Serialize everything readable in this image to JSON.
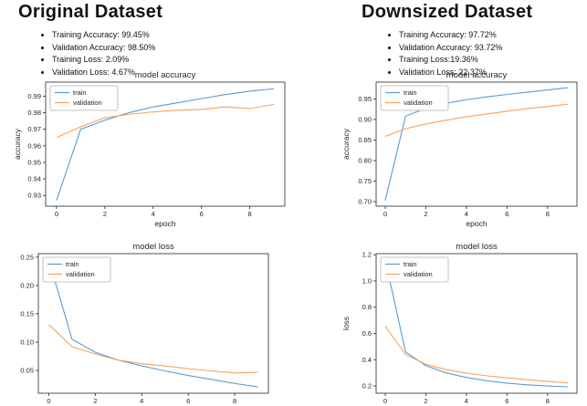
{
  "columns": [
    {
      "title": "Original Dataset",
      "bullets": [
        "Training Accuracy: 99.45%",
        "Validation Accuracy: 98.50%",
        "Training Loss: 2.09%",
        "Validation Loss: 4.67%"
      ]
    },
    {
      "title": "Downsized Dataset",
      "bullets": [
        "Training Accuracy: 97.72%",
        "Validation Accuracy: 93.72%",
        "Training Loss:19.36%",
        "Validation Loss: 22.37%"
      ]
    }
  ],
  "colors": {
    "train_line": "#5b9bd5",
    "validation_line": "#f7a35c",
    "axis": "#262626",
    "legend_border": "#b3b3b3"
  },
  "chart_data": [
    {
      "id": "original-accuracy",
      "type": "line",
      "title": "model accuracy",
      "xlabel": "epoch",
      "ylabel": "accuracy",
      "x": [
        0,
        1,
        2,
        3,
        4,
        5,
        6,
        7,
        8,
        9
      ],
      "series": [
        {
          "name": "train",
          "values": [
            0.927,
            0.97,
            0.9755,
            0.98,
            0.9835,
            0.986,
            0.9885,
            0.991,
            0.993,
            0.9945
          ]
        },
        {
          "name": "validation",
          "values": [
            0.965,
            0.9715,
            0.977,
            0.979,
            0.9805,
            0.9815,
            0.982,
            0.9835,
            0.9825,
            0.985
          ]
        }
      ],
      "xlim": [
        -0.45,
        9.45
      ],
      "ylim": [
        0.9235,
        0.9985
      ],
      "xticks": [
        0,
        2,
        4,
        6,
        8
      ],
      "xtick_labels": [
        "0",
        "2",
        "4",
        "6",
        "8"
      ],
      "yticks": [
        0.93,
        0.94,
        0.95,
        0.96,
        0.97,
        0.98,
        0.99
      ],
      "ytick_labels": [
        "0.93",
        "0.94",
        "0.95",
        "0.96",
        "0.97",
        "0.98",
        "0.99"
      ],
      "legend": [
        "train",
        "validation"
      ],
      "legend_position": "upper left",
      "grid": false
    },
    {
      "id": "downsized-accuracy",
      "type": "line",
      "title": "model accuracy",
      "xlabel": "epoch",
      "ylabel": "accuracy",
      "x": [
        0,
        1,
        2,
        3,
        4,
        5,
        6,
        7,
        8,
        9
      ],
      "series": [
        {
          "name": "train",
          "values": [
            0.703,
            0.908,
            0.9275,
            0.9395,
            0.948,
            0.955,
            0.961,
            0.9665,
            0.972,
            0.9772
          ]
        },
        {
          "name": "validation",
          "values": [
            0.859,
            0.8775,
            0.889,
            0.8985,
            0.9065,
            0.9135,
            0.92,
            0.9265,
            0.9315,
            0.9372
          ]
        }
      ],
      "xlim": [
        -0.45,
        9.45
      ],
      "ylim": [
        0.689,
        0.991
      ],
      "xticks": [
        0,
        2,
        4,
        6,
        8
      ],
      "xtick_labels": [
        "0",
        "2",
        "4",
        "6",
        "8"
      ],
      "yticks": [
        0.7,
        0.75,
        0.8,
        0.85,
        0.9,
        0.95
      ],
      "ytick_labels": [
        "0.70",
        "0.75",
        "0.80",
        "0.85",
        "0.90",
        "0.95"
      ],
      "legend": [
        "train",
        "validation"
      ],
      "legend_position": "upper left",
      "grid": false
    },
    {
      "id": "original-loss",
      "type": "line",
      "title": "model loss",
      "xlabel": "",
      "ylabel": "",
      "x": [
        0,
        1,
        2,
        3,
        4,
        5,
        6,
        7,
        8,
        9
      ],
      "series": [
        {
          "name": "train",
          "values": [
            0.245,
            0.105,
            0.082,
            0.068,
            0.058,
            0.049,
            0.041,
            0.034,
            0.027,
            0.0209
          ]
        },
        {
          "name": "validation",
          "values": [
            0.131,
            0.092,
            0.079,
            0.068,
            0.062,
            0.058,
            0.053,
            0.049,
            0.0455,
            0.0467
          ]
        }
      ],
      "xlim": [
        -0.45,
        9.45
      ],
      "ylim": [
        0.0097,
        0.2562
      ],
      "xticks": [
        0,
        2,
        4,
        6,
        8
      ],
      "xtick_labels": [
        "0",
        "2",
        "4",
        "6",
        "8"
      ],
      "yticks": [
        0.05,
        0.1,
        0.15,
        0.2,
        0.25
      ],
      "ytick_labels": [
        "0.05",
        "0.10",
        "0.15",
        "0.20",
        "0.25"
      ],
      "legend": [
        "train",
        "validation"
      ],
      "legend_position": "upper left",
      "grid": false
    },
    {
      "id": "downsized-loss",
      "type": "line",
      "title": "model loss",
      "xlabel": "",
      "ylabel": "loss",
      "x": [
        0,
        1,
        2,
        3,
        4,
        5,
        6,
        7,
        8,
        9
      ],
      "series": [
        {
          "name": "train",
          "values": [
            1.16,
            0.46,
            0.355,
            0.3,
            0.265,
            0.24,
            0.222,
            0.209,
            0.2,
            0.1936
          ]
        },
        {
          "name": "validation",
          "values": [
            0.655,
            0.44,
            0.365,
            0.325,
            0.298,
            0.278,
            0.262,
            0.248,
            0.235,
            0.2237
          ]
        }
      ],
      "xlim": [
        -0.45,
        9.45
      ],
      "ylim": [
        0.145,
        1.208
      ],
      "xticks": [
        0,
        2,
        4,
        6,
        8
      ],
      "xtick_labels": [
        "0",
        "2",
        "4",
        "6",
        "8"
      ],
      "yticks": [
        0.2,
        0.4,
        0.6,
        0.8,
        1.0,
        1.2
      ],
      "ytick_labels": [
        "0.2",
        "0.4",
        "0.6",
        "0.8",
        "1.0",
        "1.2"
      ],
      "legend": [
        "train",
        "validation"
      ],
      "legend_position": "upper left",
      "grid": false
    }
  ]
}
